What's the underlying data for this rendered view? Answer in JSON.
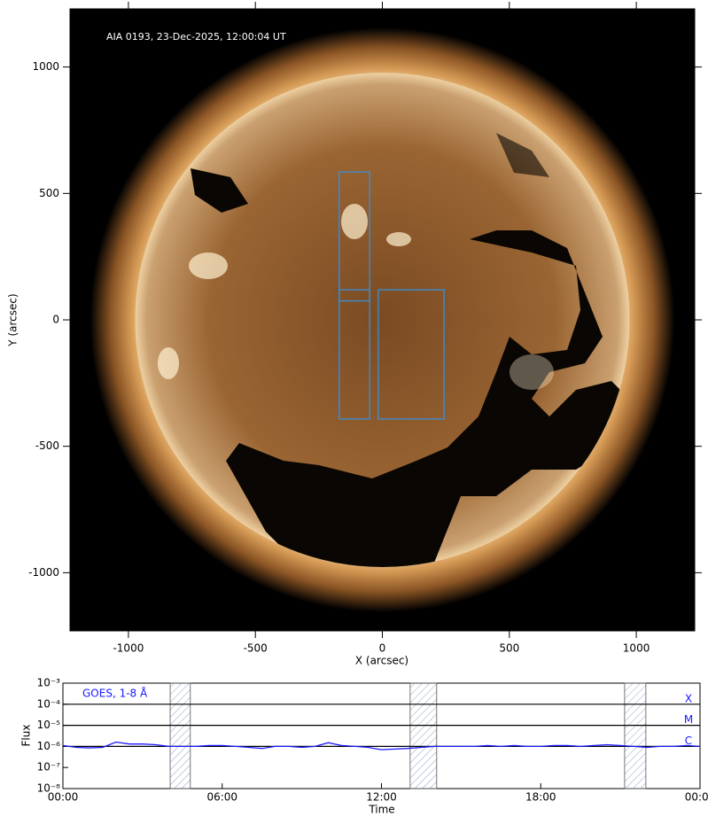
{
  "chart_data": [
    {
      "type": "image",
      "annotation": "AIA 0193, 23-Dec-2025, 12:00:04 UT",
      "x_label": "X (arcsec)",
      "y_label": "Y (arcsec)",
      "xlim": [
        -1230,
        1230
      ],
      "ylim": [
        -1230,
        1230
      ],
      "xticks": [
        -1000,
        -500,
        0,
        500,
        1000
      ],
      "yticks": [
        -1000,
        -500,
        0,
        500,
        1000
      ],
      "box_color": "#3a8fd8",
      "boxes": [
        {
          "x": [
            -170,
            -50
          ],
          "y": [
            75,
            585
          ]
        },
        {
          "x": [
            -170,
            -50
          ],
          "y": [
            -392,
            119
          ]
        },
        {
          "x": [
            -16,
            243
          ],
          "y": [
            -392,
            119
          ]
        }
      ]
    },
    {
      "type": "line",
      "x_label": "Time",
      "y_label": "Flux",
      "log_scale": true,
      "xlim": [
        0,
        24
      ],
      "ylim": [
        1e-08,
        0.001
      ],
      "xticks": [
        {
          "value": 0,
          "label": "00:00"
        },
        {
          "value": 6,
          "label": "06:00"
        },
        {
          "value": 12,
          "label": "12:00"
        },
        {
          "value": 18,
          "label": "18:00"
        },
        {
          "value": 24,
          "label": "00:00"
        }
      ],
      "yticks": [
        {
          "value": 0.001,
          "label": "10⁻³"
        },
        {
          "value": 0.0001,
          "label": "10⁻⁴"
        },
        {
          "value": 1e-05,
          "label": "10⁻⁵"
        },
        {
          "value": 1e-06,
          "label": "10⁻⁶"
        },
        {
          "value": 1e-07,
          "label": "10⁻⁷"
        },
        {
          "value": 1e-08,
          "label": "10⁻⁸"
        }
      ],
      "flare_classes": [
        {
          "value": 0.0001,
          "label": "X"
        },
        {
          "value": 1e-05,
          "label": "M"
        },
        {
          "value": 1e-06,
          "label": "C"
        }
      ],
      "shaded_intervals": [
        [
          4.04,
          4.8
        ],
        [
          13.08,
          14.08
        ],
        [
          21.16,
          21.96
        ]
      ],
      "x": [
        0,
        0.5,
        1,
        1.5,
        2,
        2.5,
        3,
        3.5,
        4,
        4.5,
        5,
        5.5,
        6,
        6.5,
        7,
        7.5,
        8,
        8.5,
        9,
        9.5,
        10,
        10.5,
        11,
        11.5,
        12,
        12.5,
        13,
        13.5,
        14,
        14.5,
        15,
        15.5,
        16,
        16.5,
        17,
        17.5,
        18,
        18.5,
        19,
        19.5,
        20,
        20.5,
        21,
        21.5,
        22,
        22.5,
        23,
        23.5,
        24
      ],
      "series": [
        {
          "name": "GOES, 1-8 Å",
          "color": "#1a1aff",
          "values": [
            1.1e-06,
            9e-07,
            8.5e-07,
            9e-07,
            1.6e-06,
            1.3e-06,
            1.3e-06,
            1.2e-06,
            1e-06,
            1e-06,
            1e-06,
            1.1e-06,
            1.1e-06,
            1e-06,
            9e-07,
            8e-07,
            1e-06,
            1e-06,
            9e-07,
            1e-06,
            1.5e-06,
            1.1e-06,
            1e-06,
            9e-07,
            7e-07,
            7.5e-07,
            8e-07,
            9e-07,
            1e-06,
            1e-06,
            1e-06,
            1e-06,
            1.1e-06,
            1e-06,
            1.1e-06,
            1e-06,
            1e-06,
            1.1e-06,
            1.1e-06,
            1e-06,
            1.1e-06,
            1.2e-06,
            1.1e-06,
            1e-06,
            9e-07,
            1e-06,
            1e-06,
            1.1e-06,
            1e-06
          ]
        }
      ]
    }
  ]
}
